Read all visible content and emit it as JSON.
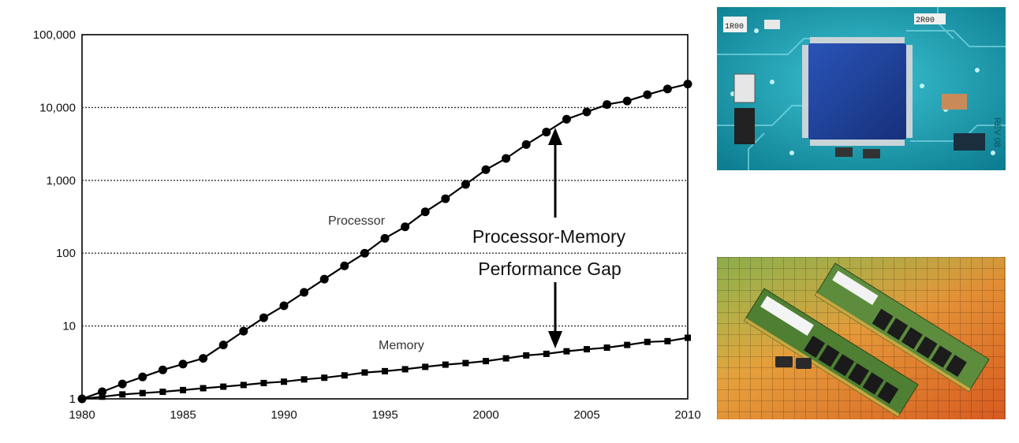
{
  "chart_data": {
    "type": "line",
    "title": "",
    "xlabel": "",
    "ylabel": "",
    "y_scale": "log",
    "xlim": [
      1980,
      2010
    ],
    "ylim": [
      1,
      100000
    ],
    "grid": "horizontal dotted at each decade",
    "x_tick_labels": [
      "1980",
      "1985",
      "1990",
      "1995",
      "2000",
      "2005",
      "2010"
    ],
    "y_tick_labels": [
      "1",
      "10",
      "100",
      "1,000",
      "10,000",
      "100,000"
    ],
    "x_ticks": [
      1980,
      1985,
      1990,
      1995,
      2000,
      2005,
      2010
    ],
    "y_ticks": [
      1,
      10,
      100,
      1000,
      10000,
      100000
    ],
    "series": [
      {
        "name": "Processor",
        "marker": "circle",
        "x": [
          1980,
          1981,
          1982,
          1983,
          1984,
          1985,
          1986,
          1987,
          1988,
          1989,
          1990,
          1991,
          1992,
          1993,
          1994,
          1995,
          1996,
          1997,
          1998,
          1999,
          2000,
          2001,
          2002,
          2003,
          2004,
          2005,
          2006,
          2007,
          2008,
          2009,
          2010
        ],
        "y": [
          1,
          1.25,
          1.6,
          2.0,
          2.5,
          3.0,
          3.6,
          5.5,
          8.5,
          13,
          19,
          29,
          44,
          67,
          100,
          160,
          230,
          370,
          560,
          880,
          1400,
          2000,
          3100,
          4600,
          6900,
          8700,
          11000,
          12300,
          15000,
          18000,
          21000
        ]
      },
      {
        "name": "Memory",
        "marker": "square",
        "x": [
          1980,
          1981,
          1982,
          1983,
          1984,
          1985,
          1986,
          1987,
          1988,
          1989,
          1990,
          1991,
          1992,
          1993,
          1994,
          1995,
          1996,
          1997,
          1998,
          1999,
          2000,
          2001,
          2002,
          2003,
          2004,
          2005,
          2006,
          2007,
          2008,
          2009,
          2010
        ],
        "y": [
          1,
          1.07,
          1.15,
          1.2,
          1.25,
          1.32,
          1.4,
          1.47,
          1.55,
          1.65,
          1.72,
          1.85,
          1.95,
          2.1,
          2.3,
          2.4,
          2.55,
          2.75,
          2.95,
          3.1,
          3.3,
          3.6,
          3.95,
          4.15,
          4.5,
          4.8,
          5.05,
          5.5,
          6.05,
          6.2,
          6.9
        ]
      }
    ],
    "annotation": {
      "line1": "Processor-Memory",
      "line2": "Performance Gap"
    }
  },
  "colors": {
    "series": "#000000",
    "grid": "#333333",
    "cpu_board": "#1fa2b4",
    "cpu_chip": "#1d3e9a",
    "ram_pcb": "#5b8a3a"
  },
  "photos": {
    "top": "circuit-board-with-processor-chip",
    "bottom": "memory-modules-on-wafer"
  },
  "cpu_board_text": {
    "t1": "1R00",
    "t2": "2R00",
    "t3": "REV 08"
  }
}
